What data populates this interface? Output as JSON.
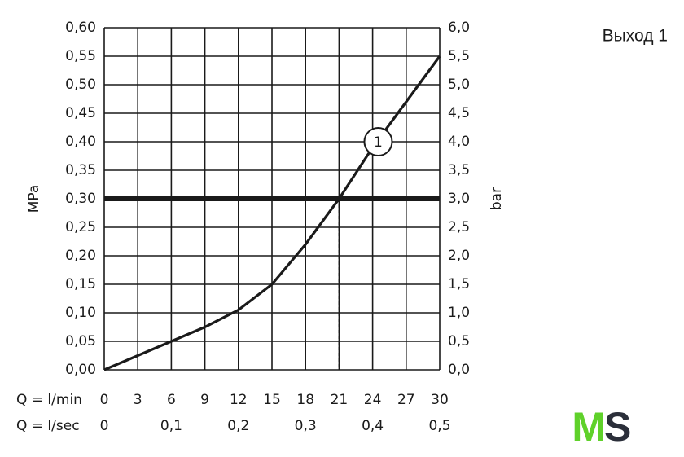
{
  "chart_data": {
    "type": "line",
    "caption": "Выход 1",
    "logo": [
      "M",
      "S"
    ],
    "ylabel": "MPa",
    "y2label": "bar",
    "xlabel": "Q = l/min",
    "x2label": "Q = l/sec",
    "x": [
      0,
      3,
      6,
      9,
      12,
      15,
      18,
      21,
      24,
      27,
      30
    ],
    "values": [
      0,
      0.025,
      0.05,
      0.075,
      0.105,
      0.15,
      0.22,
      0.3,
      0.39,
      0.47,
      0.55
    ],
    "color": "#1a1a1a",
    "xlim": [
      0,
      30
    ],
    "xticks": [
      0,
      3,
      6,
      9,
      12,
      15,
      18,
      21,
      24,
      27,
      30
    ],
    "x2lim": [
      0,
      0.5
    ],
    "x2ticks": [
      0,
      {
        "value": 0.1,
        "label": "0,1"
      },
      {
        "value": 0.2,
        "label": "0,2"
      },
      {
        "value": 0.3,
        "label": "0,3"
      },
      {
        "value": 0.4,
        "label": "0,4"
      },
      {
        "value": 0.5,
        "label": "0,5"
      }
    ],
    "ylim": [
      0,
      0.6
    ],
    "yticks": [
      {
        "value": 0,
        "label": "0,00"
      },
      {
        "value": 0.05,
        "label": "0,05"
      },
      {
        "value": 0.1,
        "label": "0,10"
      },
      {
        "value": 0.15,
        "label": "0,15"
      },
      {
        "value": 0.2,
        "label": "0,20"
      },
      {
        "value": 0.25,
        "label": "0,25"
      },
      {
        "value": 0.3,
        "label": "0,30"
      },
      {
        "value": 0.35,
        "label": "0,35"
      },
      {
        "value": 0.4,
        "label": "0,40"
      },
      {
        "value": 0.45,
        "label": "0,45"
      },
      {
        "value": 0.5,
        "label": "0,50"
      },
      {
        "value": 0.55,
        "label": "0,55"
      },
      {
        "value": 0.6,
        "label": "0,60"
      }
    ],
    "y2lim": [
      0,
      6
    ],
    "y2ticks": [
      {
        "value": 0,
        "label": "0,0"
      },
      {
        "value": 0.5,
        "label": "0,5"
      },
      {
        "value": 1,
        "label": "1,0"
      },
      {
        "value": 1.5,
        "label": "1,5"
      },
      {
        "value": 2,
        "label": "2,0"
      },
      {
        "value": 2.5,
        "label": "2,5"
      },
      {
        "value": 3,
        "label": "3,0"
      },
      {
        "value": 3.5,
        "label": "3,5"
      },
      {
        "value": 4,
        "label": "4,0"
      },
      {
        "value": 4.5,
        "label": "4,5"
      },
      {
        "value": 5,
        "label": "5,0"
      },
      {
        "value": 5.5,
        "label": "5,5"
      },
      {
        "value": 6,
        "label": "6,0"
      }
    ],
    "hline": 0.3,
    "vline": 21,
    "annotations": [
      {
        "text": "1",
        "x": 24.5,
        "y": 0.4
      }
    ],
    "grid": true
  }
}
